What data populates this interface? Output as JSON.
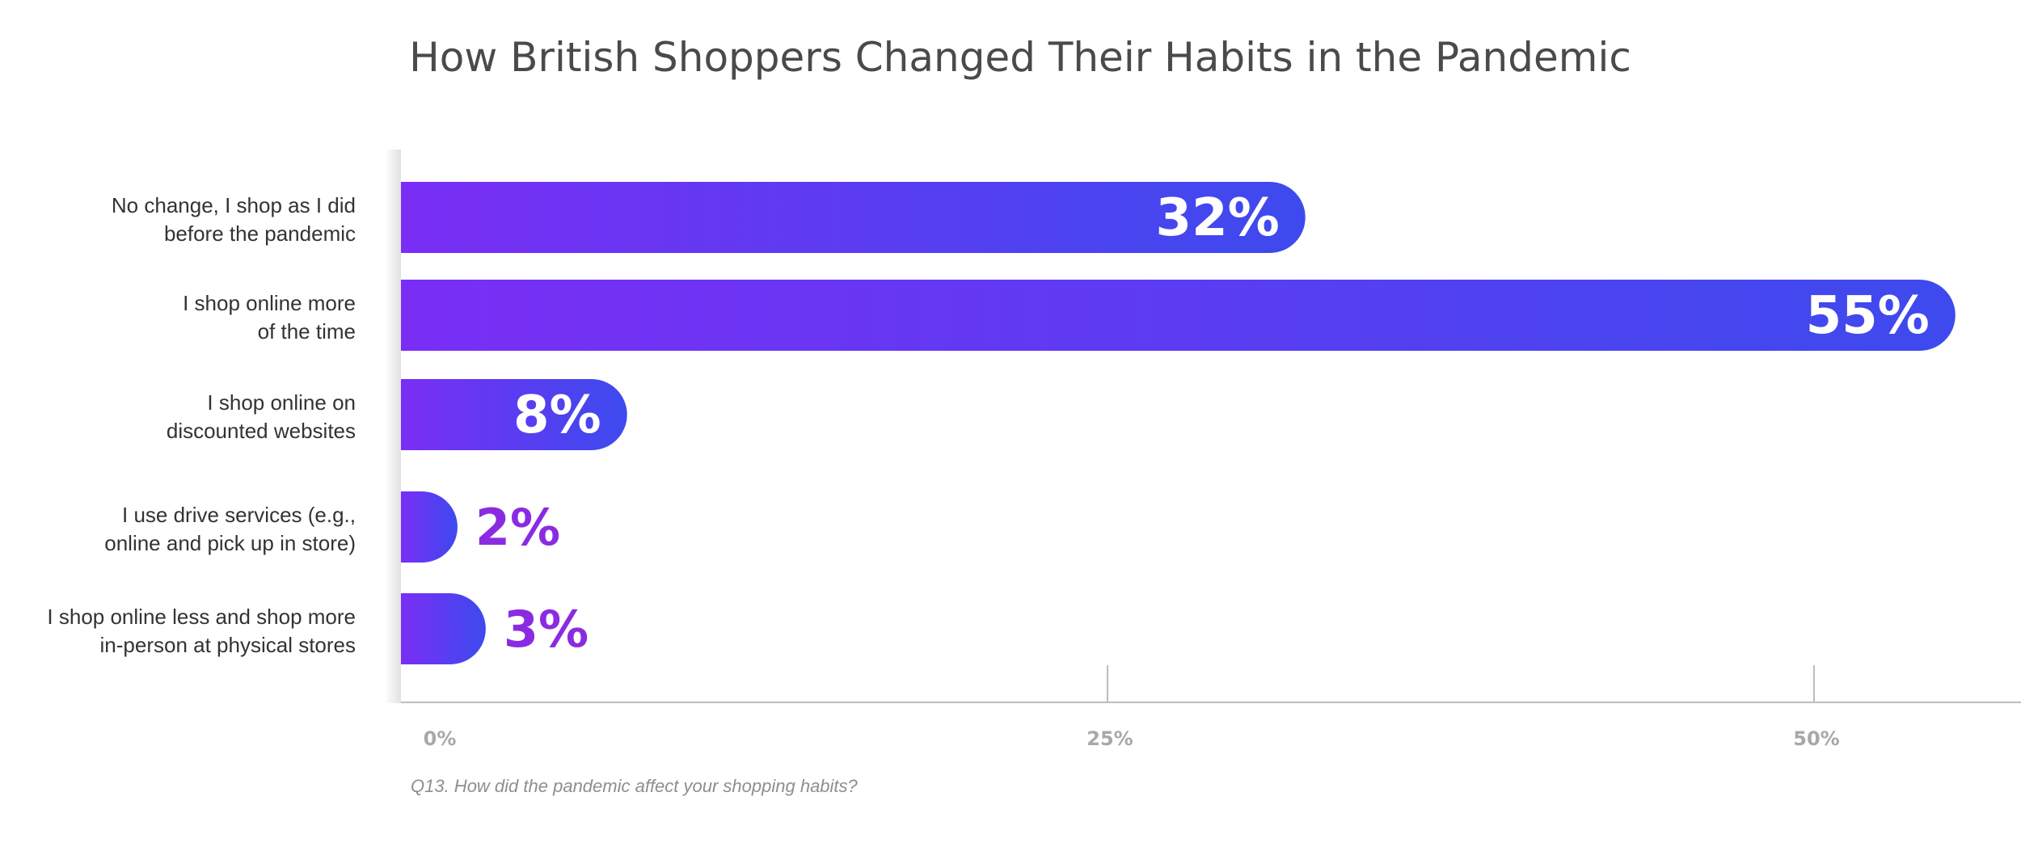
{
  "title": "How British Shoppers Changed Their Habits in the Pandemic",
  "question": "Q13. How did the pandemic affect your shopping habits?",
  "colors": {
    "bar_start": "#7a2ef5",
    "bar_end": "#3d4aee",
    "value_inside": "#ffffff",
    "value_outside": "#8a2be2",
    "axis": "#bdbdbd",
    "tick_label": "#a8a8a8",
    "category_label": "#333333",
    "title": "#4a4a4a"
  },
  "chart_data": {
    "type": "bar",
    "orientation": "horizontal",
    "title": "How British Shoppers Changed Their Habits in the Pandemic",
    "xlabel": "",
    "ylabel": "",
    "xlim": [
      0,
      57
    ],
    "grid": false,
    "categories": [
      [
        "No change, I shop as I did",
        "before the pandemic"
      ],
      [
        "I shop online more",
        "of the time"
      ],
      [
        "I shop online on",
        "discounted websites"
      ],
      [
        "I use drive services (e.g.,",
        "online and pick up in store)"
      ],
      [
        "I shop online less and shop more",
        "in-person at physical stores"
      ]
    ],
    "values": [
      32,
      55,
      8,
      2,
      3
    ],
    "value_labels": [
      "32%",
      "55%",
      "8%",
      "2%",
      "3%"
    ],
    "ticks": [
      {
        "value": 0,
        "label": "0%"
      },
      {
        "value": 25,
        "label": "25%"
      },
      {
        "value": 50,
        "label": "50%"
      }
    ]
  }
}
